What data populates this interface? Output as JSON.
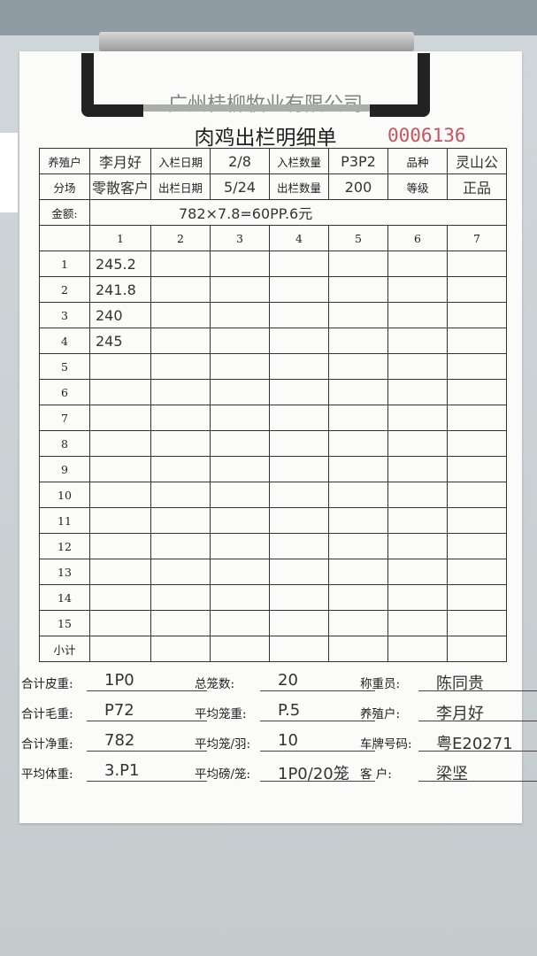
{
  "header": {
    "company": "广州桂柳牧业有限公司",
    "title": "肉鸡出栏明细单",
    "serial": "0006136"
  },
  "info": {
    "farmer_label": "养殖户",
    "farmer": "李月好",
    "in_date_label": "入栏日期",
    "in_date": "2/8",
    "in_qty_label": "入栏数量",
    "in_qty": "P3P2",
    "breed_label": "品种",
    "breed": "灵山公",
    "branch_label": "分场",
    "branch": "零散客户",
    "out_date_label": "出栏日期",
    "out_date": "5/24",
    "out_qty_label": "出栏数量",
    "out_qty": "200",
    "grade_label": "等级",
    "grade": "正品",
    "amount_label": "金额:",
    "amount": "782×7.8=60PP.6元"
  },
  "grid": {
    "columns": [
      "1",
      "2",
      "3",
      "4",
      "5",
      "6",
      "7"
    ],
    "rows": [
      {
        "label": "1",
        "cells": [
          "245.2",
          "",
          "",
          "",
          "",
          "",
          ""
        ]
      },
      {
        "label": "2",
        "cells": [
          "241.8",
          "",
          "",
          "",
          "",
          "",
          ""
        ]
      },
      {
        "label": "3",
        "cells": [
          "240",
          "",
          "",
          "",
          "",
          "",
          ""
        ]
      },
      {
        "label": "4",
        "cells": [
          "245",
          "",
          "",
          "",
          "",
          "",
          ""
        ]
      },
      {
        "label": "5",
        "cells": [
          "",
          "",
          "",
          "",
          "",
          "",
          ""
        ]
      },
      {
        "label": "6",
        "cells": [
          "",
          "",
          "",
          "",
          "",
          "",
          ""
        ]
      },
      {
        "label": "7",
        "cells": [
          "",
          "",
          "",
          "",
          "",
          "",
          ""
        ]
      },
      {
        "label": "8",
        "cells": [
          "",
          "",
          "",
          "",
          "",
          "",
          ""
        ]
      },
      {
        "label": "9",
        "cells": [
          "",
          "",
          "",
          "",
          "",
          "",
          ""
        ]
      },
      {
        "label": "10",
        "cells": [
          "",
          "",
          "",
          "",
          "",
          "",
          ""
        ]
      },
      {
        "label": "11",
        "cells": [
          "",
          "",
          "",
          "",
          "",
          "",
          ""
        ]
      },
      {
        "label": "12",
        "cells": [
          "",
          "",
          "",
          "",
          "",
          "",
          ""
        ]
      },
      {
        "label": "13",
        "cells": [
          "",
          "",
          "",
          "",
          "",
          "",
          ""
        ]
      },
      {
        "label": "14",
        "cells": [
          "",
          "",
          "",
          "",
          "",
          "",
          ""
        ]
      },
      {
        "label": "15",
        "cells": [
          "",
          "",
          "",
          "",
          "",
          "",
          ""
        ]
      },
      {
        "label": "小计",
        "cells": [
          "",
          "",
          "",
          "",
          "",
          "",
          ""
        ]
      }
    ]
  },
  "summary": [
    {
      "label": "合计皮重:",
      "value": "1P0"
    },
    {
      "label": "总笼数:",
      "value": "20"
    },
    {
      "label": "称重员:",
      "value": "陈同贵"
    },
    {
      "label": "合计毛重:",
      "value": "P72"
    },
    {
      "label": "平均笼重:",
      "value": "P.5"
    },
    {
      "label": "养殖户:",
      "value": "李月好"
    },
    {
      "label": "合计净重:",
      "value": "782"
    },
    {
      "label": "平均笼/羽:",
      "value": "10"
    },
    {
      "label": "车牌号码:",
      "value": "粤E20271"
    },
    {
      "label": "平均体重:",
      "value": "3.P1"
    },
    {
      "label": "平均磅/笼:",
      "value": "1P0/20笼"
    },
    {
      "label": "客  户:",
      "value": "梁坚"
    }
  ]
}
